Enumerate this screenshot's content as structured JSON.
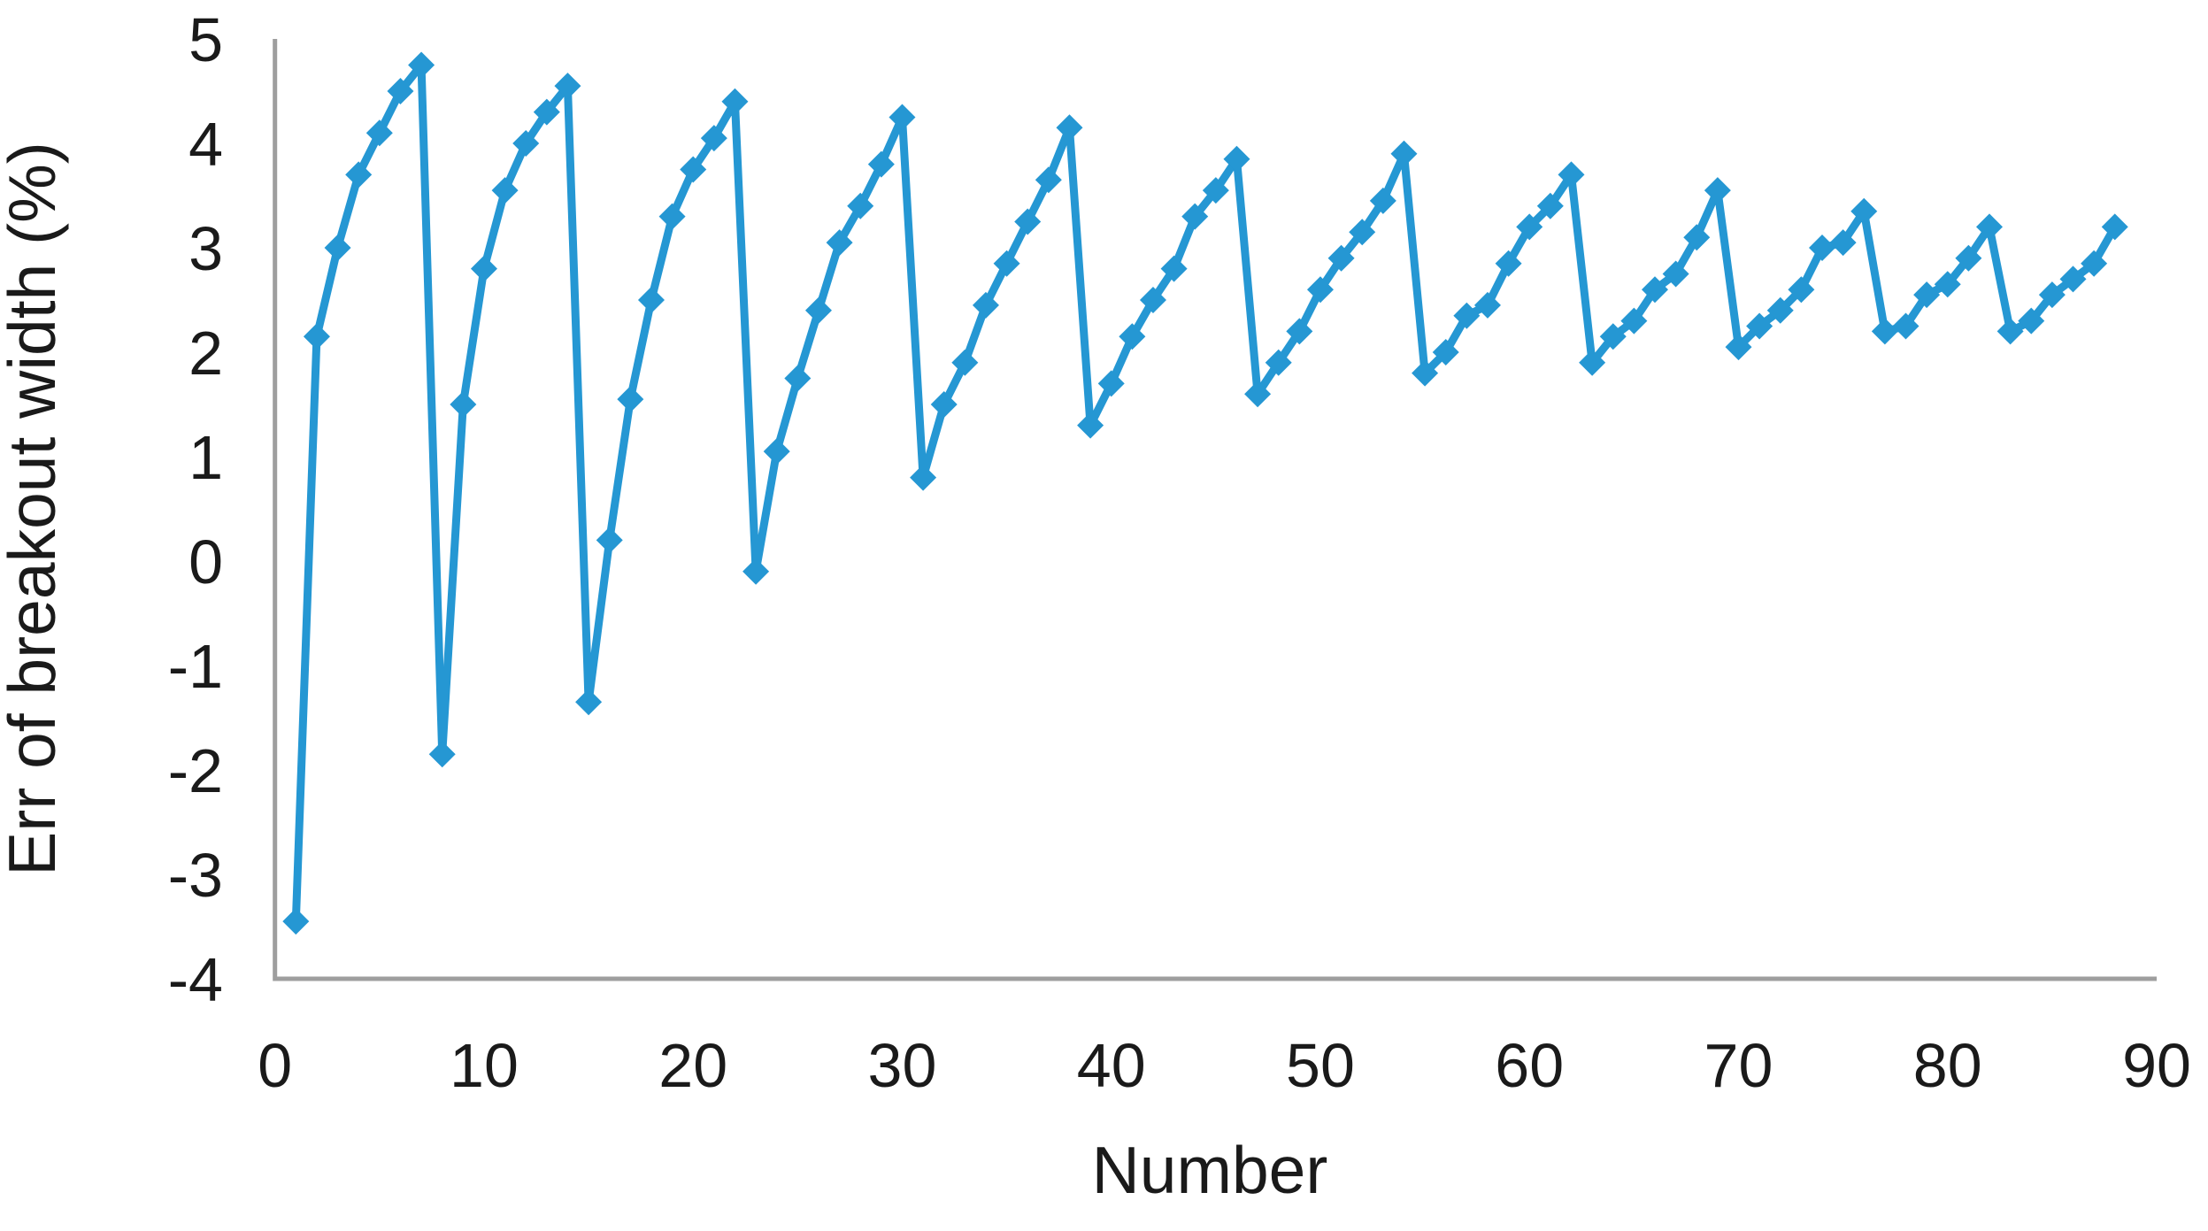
{
  "chart_data": {
    "type": "line",
    "title": "",
    "xlabel": "Number",
    "ylabel": "Err of breakout width (%)",
    "series": [
      {
        "name": "Err of breakout width (%)",
        "x": [
          1,
          2,
          3,
          4,
          5,
          6,
          7,
          8,
          9,
          10,
          11,
          12,
          13,
          14,
          15,
          16,
          17,
          18,
          19,
          20,
          21,
          22,
          23,
          24,
          25,
          26,
          27,
          28,
          29,
          30,
          31,
          32,
          33,
          34,
          35,
          36,
          37,
          38,
          39,
          40,
          41,
          42,
          43,
          44,
          45,
          46,
          47,
          48,
          49,
          50,
          51,
          52,
          53,
          54,
          55,
          56,
          57,
          58,
          59,
          60,
          61,
          62,
          63,
          64,
          65,
          66,
          67,
          68,
          69,
          70,
          71,
          72,
          73,
          74,
          75,
          76,
          77,
          78,
          79,
          80,
          81,
          82,
          83,
          84,
          85,
          86,
          87,
          88
        ],
        "y": [
          -3.45,
          2.15,
          3.0,
          3.7,
          4.1,
          4.5,
          4.75,
          -1.85,
          1.5,
          2.8,
          3.55,
          4.0,
          4.3,
          4.55,
          -1.35,
          0.2,
          1.55,
          2.5,
          3.3,
          3.75,
          4.05,
          4.4,
          -0.1,
          1.05,
          1.75,
          2.4,
          3.05,
          3.4,
          3.8,
          4.25,
          0.8,
          1.5,
          1.9,
          2.45,
          2.85,
          3.25,
          3.65,
          4.15,
          1.3,
          1.7,
          2.15,
          2.5,
          2.8,
          3.3,
          3.55,
          3.85,
          1.6,
          1.9,
          2.2,
          2.6,
          2.9,
          3.15,
          3.45,
          3.9,
          1.8,
          2.0,
          2.35,
          2.45,
          2.85,
          3.2,
          3.4,
          3.7,
          1.9,
          2.15,
          2.3,
          2.6,
          2.75,
          3.1,
          3.55,
          2.05,
          2.25,
          2.4,
          2.6,
          3.0,
          3.05,
          3.35,
          2.2,
          2.25,
          2.55,
          2.65,
          2.9,
          3.2,
          2.2,
          2.3,
          2.55,
          2.7,
          2.85,
          3.2
        ]
      }
    ],
    "x_ticks": [
      0,
      10,
      20,
      30,
      40,
      50,
      60,
      70,
      80,
      90
    ],
    "y_ticks": [
      5,
      4,
      3,
      2,
      1,
      0,
      -1,
      -2,
      -3,
      -4
    ],
    "xlim": [
      0,
      90
    ],
    "ylim": [
      -4,
      5
    ],
    "grid": false,
    "legend": false,
    "marker": "diamond",
    "line_color": "#2597d3",
    "axis_color": "#9e9e9e",
    "text_color": "#1a1a1a"
  }
}
